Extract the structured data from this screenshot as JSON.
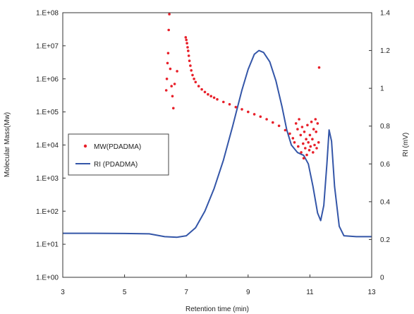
{
  "chart_data": {
    "type": "scatter+line",
    "title": "",
    "xlabel": "Retention time (min)",
    "ylabel_left": "Molecular Mass(Mw)",
    "ylabel_right": "RI (mV)",
    "xlim": [
      3,
      13
    ],
    "x_ticks": [
      "3",
      "5",
      "7",
      "9",
      "11",
      "13"
    ],
    "y_left_scale": "log",
    "y_left_lim": [
      1,
      100000000
    ],
    "y_left_ticks": [
      "1.E+00",
      "1.E+01",
      "1.E+02",
      "1.E+03",
      "1.E+04",
      "1.E+05",
      "1.E+06",
      "1.E+07",
      "1.E+08"
    ],
    "y_right_lim": [
      0,
      1.4
    ],
    "y_right_ticks": [
      "0",
      "0.2",
      "0.4",
      "0.6",
      "0.8",
      "1",
      "1.2",
      "1.4"
    ],
    "grid": false,
    "legend_position": "left-middle",
    "colors": {
      "mw": "#e8202a",
      "ri": "#3456a8",
      "axis": "#333333"
    },
    "series": [
      {
        "name": "MW(PDADMA)",
        "axis": "left",
        "style": "markers",
        "points": [
          [
            6.35,
            450000
          ],
          [
            6.37,
            1000000
          ],
          [
            6.39,
            3000000
          ],
          [
            6.41,
            6000000
          ],
          [
            6.43,
            30000000
          ],
          [
            6.45,
            90000000
          ],
          [
            6.48,
            2000000
          ],
          [
            6.52,
            600000
          ],
          [
            6.55,
            300000
          ],
          [
            6.58,
            130000
          ],
          [
            6.62,
            700000
          ],
          [
            6.7,
            1700000
          ],
          [
            6.98,
            18000000
          ],
          [
            7.0,
            15000000
          ],
          [
            7.02,
            12000000
          ],
          [
            7.04,
            9000000
          ],
          [
            7.06,
            7000000
          ],
          [
            7.08,
            5000000
          ],
          [
            7.1,
            3500000
          ],
          [
            7.13,
            2500000
          ],
          [
            7.16,
            1800000
          ],
          [
            7.2,
            1300000
          ],
          [
            7.25,
            1000000
          ],
          [
            7.3,
            800000
          ],
          [
            7.4,
            600000
          ],
          [
            7.5,
            480000
          ],
          [
            7.6,
            400000
          ],
          [
            7.7,
            340000
          ],
          [
            7.8,
            300000
          ],
          [
            7.9,
            270000
          ],
          [
            8.0,
            240000
          ],
          [
            8.2,
            200000
          ],
          [
            8.4,
            170000
          ],
          [
            8.6,
            140000
          ],
          [
            8.8,
            120000
          ],
          [
            9.0,
            100000
          ],
          [
            9.2,
            85000
          ],
          [
            9.4,
            72000
          ],
          [
            9.6,
            60000
          ],
          [
            9.8,
            48000
          ],
          [
            10.0,
            38000
          ],
          [
            10.2,
            28000
          ],
          [
            10.35,
            22000
          ],
          [
            10.45,
            16000
          ],
          [
            10.5,
            12000
          ],
          [
            10.55,
            45000
          ],
          [
            10.6,
            30000
          ],
          [
            10.62,
            9000
          ],
          [
            10.65,
            60000
          ],
          [
            10.7,
            20000
          ],
          [
            10.72,
            6000
          ],
          [
            10.75,
            35000
          ],
          [
            10.78,
            11000
          ],
          [
            10.8,
            4000
          ],
          [
            10.82,
            25000
          ],
          [
            10.85,
            8000
          ],
          [
            10.88,
            15000
          ],
          [
            10.9,
            5000
          ],
          [
            10.92,
            40000
          ],
          [
            10.95,
            12000
          ],
          [
            10.98,
            7000
          ],
          [
            11.0,
            20000
          ],
          [
            11.02,
            9000
          ],
          [
            11.05,
            50000
          ],
          [
            11.08,
            15000
          ],
          [
            11.1,
            6000
          ],
          [
            11.12,
            30000
          ],
          [
            11.15,
            10000
          ],
          [
            11.18,
            60000
          ],
          [
            11.2,
            25000
          ],
          [
            11.22,
            8000
          ],
          [
            11.25,
            45000
          ],
          [
            11.28,
            12000
          ],
          [
            11.3,
            2200000
          ]
        ]
      },
      {
        "name": "RI (PDADMA)",
        "axis": "right",
        "style": "line",
        "points": [
          [
            3.0,
            0.233
          ],
          [
            4.0,
            0.233
          ],
          [
            5.0,
            0.232
          ],
          [
            5.8,
            0.23
          ],
          [
            6.3,
            0.215
          ],
          [
            6.7,
            0.212
          ],
          [
            7.0,
            0.22
          ],
          [
            7.3,
            0.262
          ],
          [
            7.6,
            0.35
          ],
          [
            7.9,
            0.47
          ],
          [
            8.2,
            0.62
          ],
          [
            8.5,
            0.8
          ],
          [
            8.8,
            0.99
          ],
          [
            9.0,
            1.1
          ],
          [
            9.2,
            1.18
          ],
          [
            9.35,
            1.2
          ],
          [
            9.5,
            1.19
          ],
          [
            9.7,
            1.14
          ],
          [
            9.9,
            1.04
          ],
          [
            10.1,
            0.9
          ],
          [
            10.25,
            0.78
          ],
          [
            10.4,
            0.7
          ],
          [
            10.6,
            0.66
          ],
          [
            10.8,
            0.645
          ],
          [
            10.95,
            0.6
          ],
          [
            11.1,
            0.48
          ],
          [
            11.25,
            0.34
          ],
          [
            11.35,
            0.3
          ],
          [
            11.45,
            0.38
          ],
          [
            11.55,
            0.6
          ],
          [
            11.62,
            0.78
          ],
          [
            11.7,
            0.72
          ],
          [
            11.8,
            0.48
          ],
          [
            11.95,
            0.27
          ],
          [
            12.1,
            0.22
          ],
          [
            12.5,
            0.215
          ],
          [
            13.0,
            0.215
          ]
        ]
      }
    ]
  }
}
